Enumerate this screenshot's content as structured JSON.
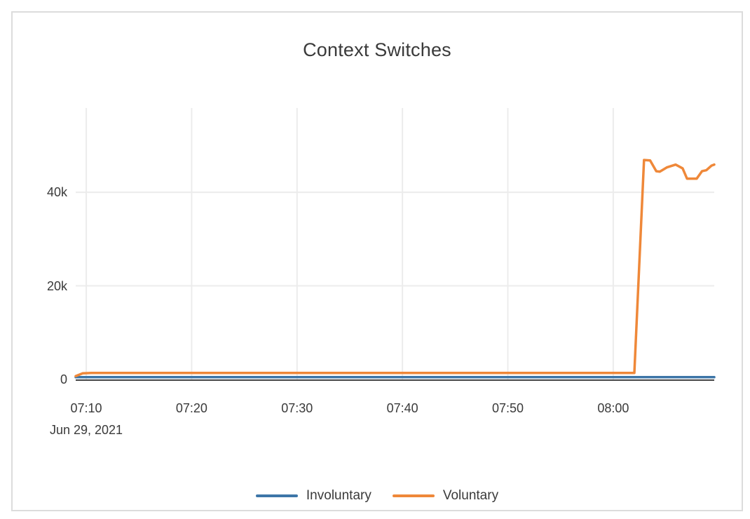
{
  "card": {
    "title": "Context Switches"
  },
  "colors": {
    "involuntary": "#3d76a8",
    "voluntary": "#ef8839",
    "grid": "#ececec",
    "axis_line": "#444444",
    "text": "#3a3a3a",
    "card_border": "#dcdcdc"
  },
  "chart_data": {
    "type": "line",
    "title": "Context Switches",
    "x_axis": {
      "date_label": "Jun 29, 2021",
      "ticks": [
        "07:10",
        "07:20",
        "07:30",
        "07:40",
        "07:50",
        "08:00"
      ],
      "range": [
        "07:09:00",
        "08:09:35"
      ],
      "grid": true
    },
    "y_axis": {
      "ticks": [
        "0",
        "20k",
        "40k"
      ],
      "tick_values": [
        0,
        20000,
        40000
      ],
      "range": [
        0,
        58000
      ],
      "grid": true
    },
    "legend": {
      "position": "bottom-center",
      "entries": [
        {
          "label": "Involuntary",
          "color": "#3d76a8"
        },
        {
          "label": "Voluntary",
          "color": "#ef8839"
        }
      ]
    },
    "series": [
      {
        "name": "Involuntary",
        "color": "#3d76a8",
        "points": [
          [
            "07:09:00",
            500
          ],
          [
            "08:09:35",
            500
          ]
        ]
      },
      {
        "name": "Voluntary",
        "color": "#ef8839",
        "points": [
          [
            "07:09:00",
            700
          ],
          [
            "07:09:40",
            1300
          ],
          [
            "07:10:30",
            1400
          ],
          [
            "08:02:00",
            1400
          ],
          [
            "08:02:55",
            46900
          ],
          [
            "08:03:30",
            46800
          ],
          [
            "08:04:05",
            44500
          ],
          [
            "08:04:25",
            44400
          ],
          [
            "08:05:05",
            45300
          ],
          [
            "08:05:55",
            45900
          ],
          [
            "08:06:35",
            45100
          ],
          [
            "08:07:00",
            42900
          ],
          [
            "08:07:55",
            42900
          ],
          [
            "08:08:25",
            44500
          ],
          [
            "08:08:50",
            44700
          ],
          [
            "08:09:20",
            45700
          ],
          [
            "08:09:35",
            45900
          ]
        ]
      }
    ]
  }
}
